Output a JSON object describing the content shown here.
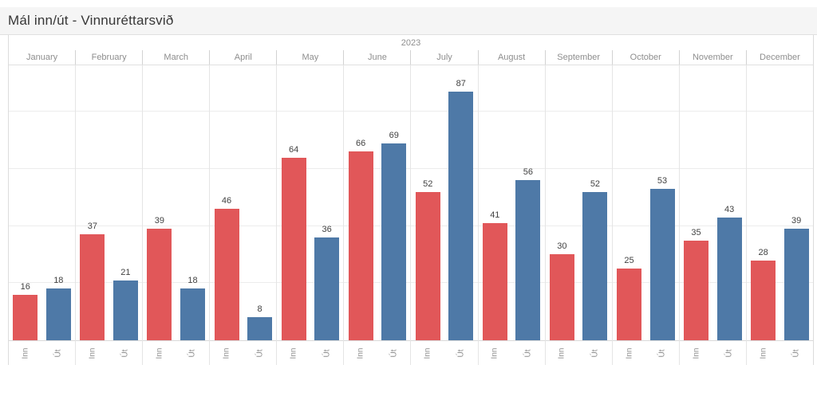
{
  "title": "Mál inn/út - Vinnuréttarsvið",
  "chart_data": {
    "type": "bar",
    "title": "Mál inn/út - Vinnuréttarsvið",
    "year_label": "2023",
    "categories": [
      "January",
      "February",
      "March",
      "April",
      "May",
      "June",
      "July",
      "August",
      "September",
      "October",
      "November",
      "December"
    ],
    "series": [
      {
        "name": "Inn",
        "color": "#e15759",
        "values": [
          16,
          37,
          39,
          46,
          64,
          66,
          52,
          41,
          30,
          25,
          35,
          28
        ]
      },
      {
        "name": "Út",
        "color": "#4e79a7",
        "values": [
          18,
          21,
          18,
          8,
          36,
          69,
          87,
          56,
          52,
          53,
          43,
          39
        ]
      }
    ],
    "xlabel": "",
    "ylabel": "",
    "ylim": [
      0,
      96
    ],
    "gridlines": [
      20,
      40,
      60,
      80
    ],
    "grid": "horizontal-only",
    "legend": "none",
    "bar_axis_labels": [
      "Inn",
      "Út"
    ]
  },
  "colors": {
    "inn_bar": "#e15759",
    "ut_bar": "#4e79a7",
    "title_band_bg": "#f5f5f5",
    "header_text": "#8e8e8e",
    "value_label_text": "#424242",
    "gridline": "#ececec"
  }
}
